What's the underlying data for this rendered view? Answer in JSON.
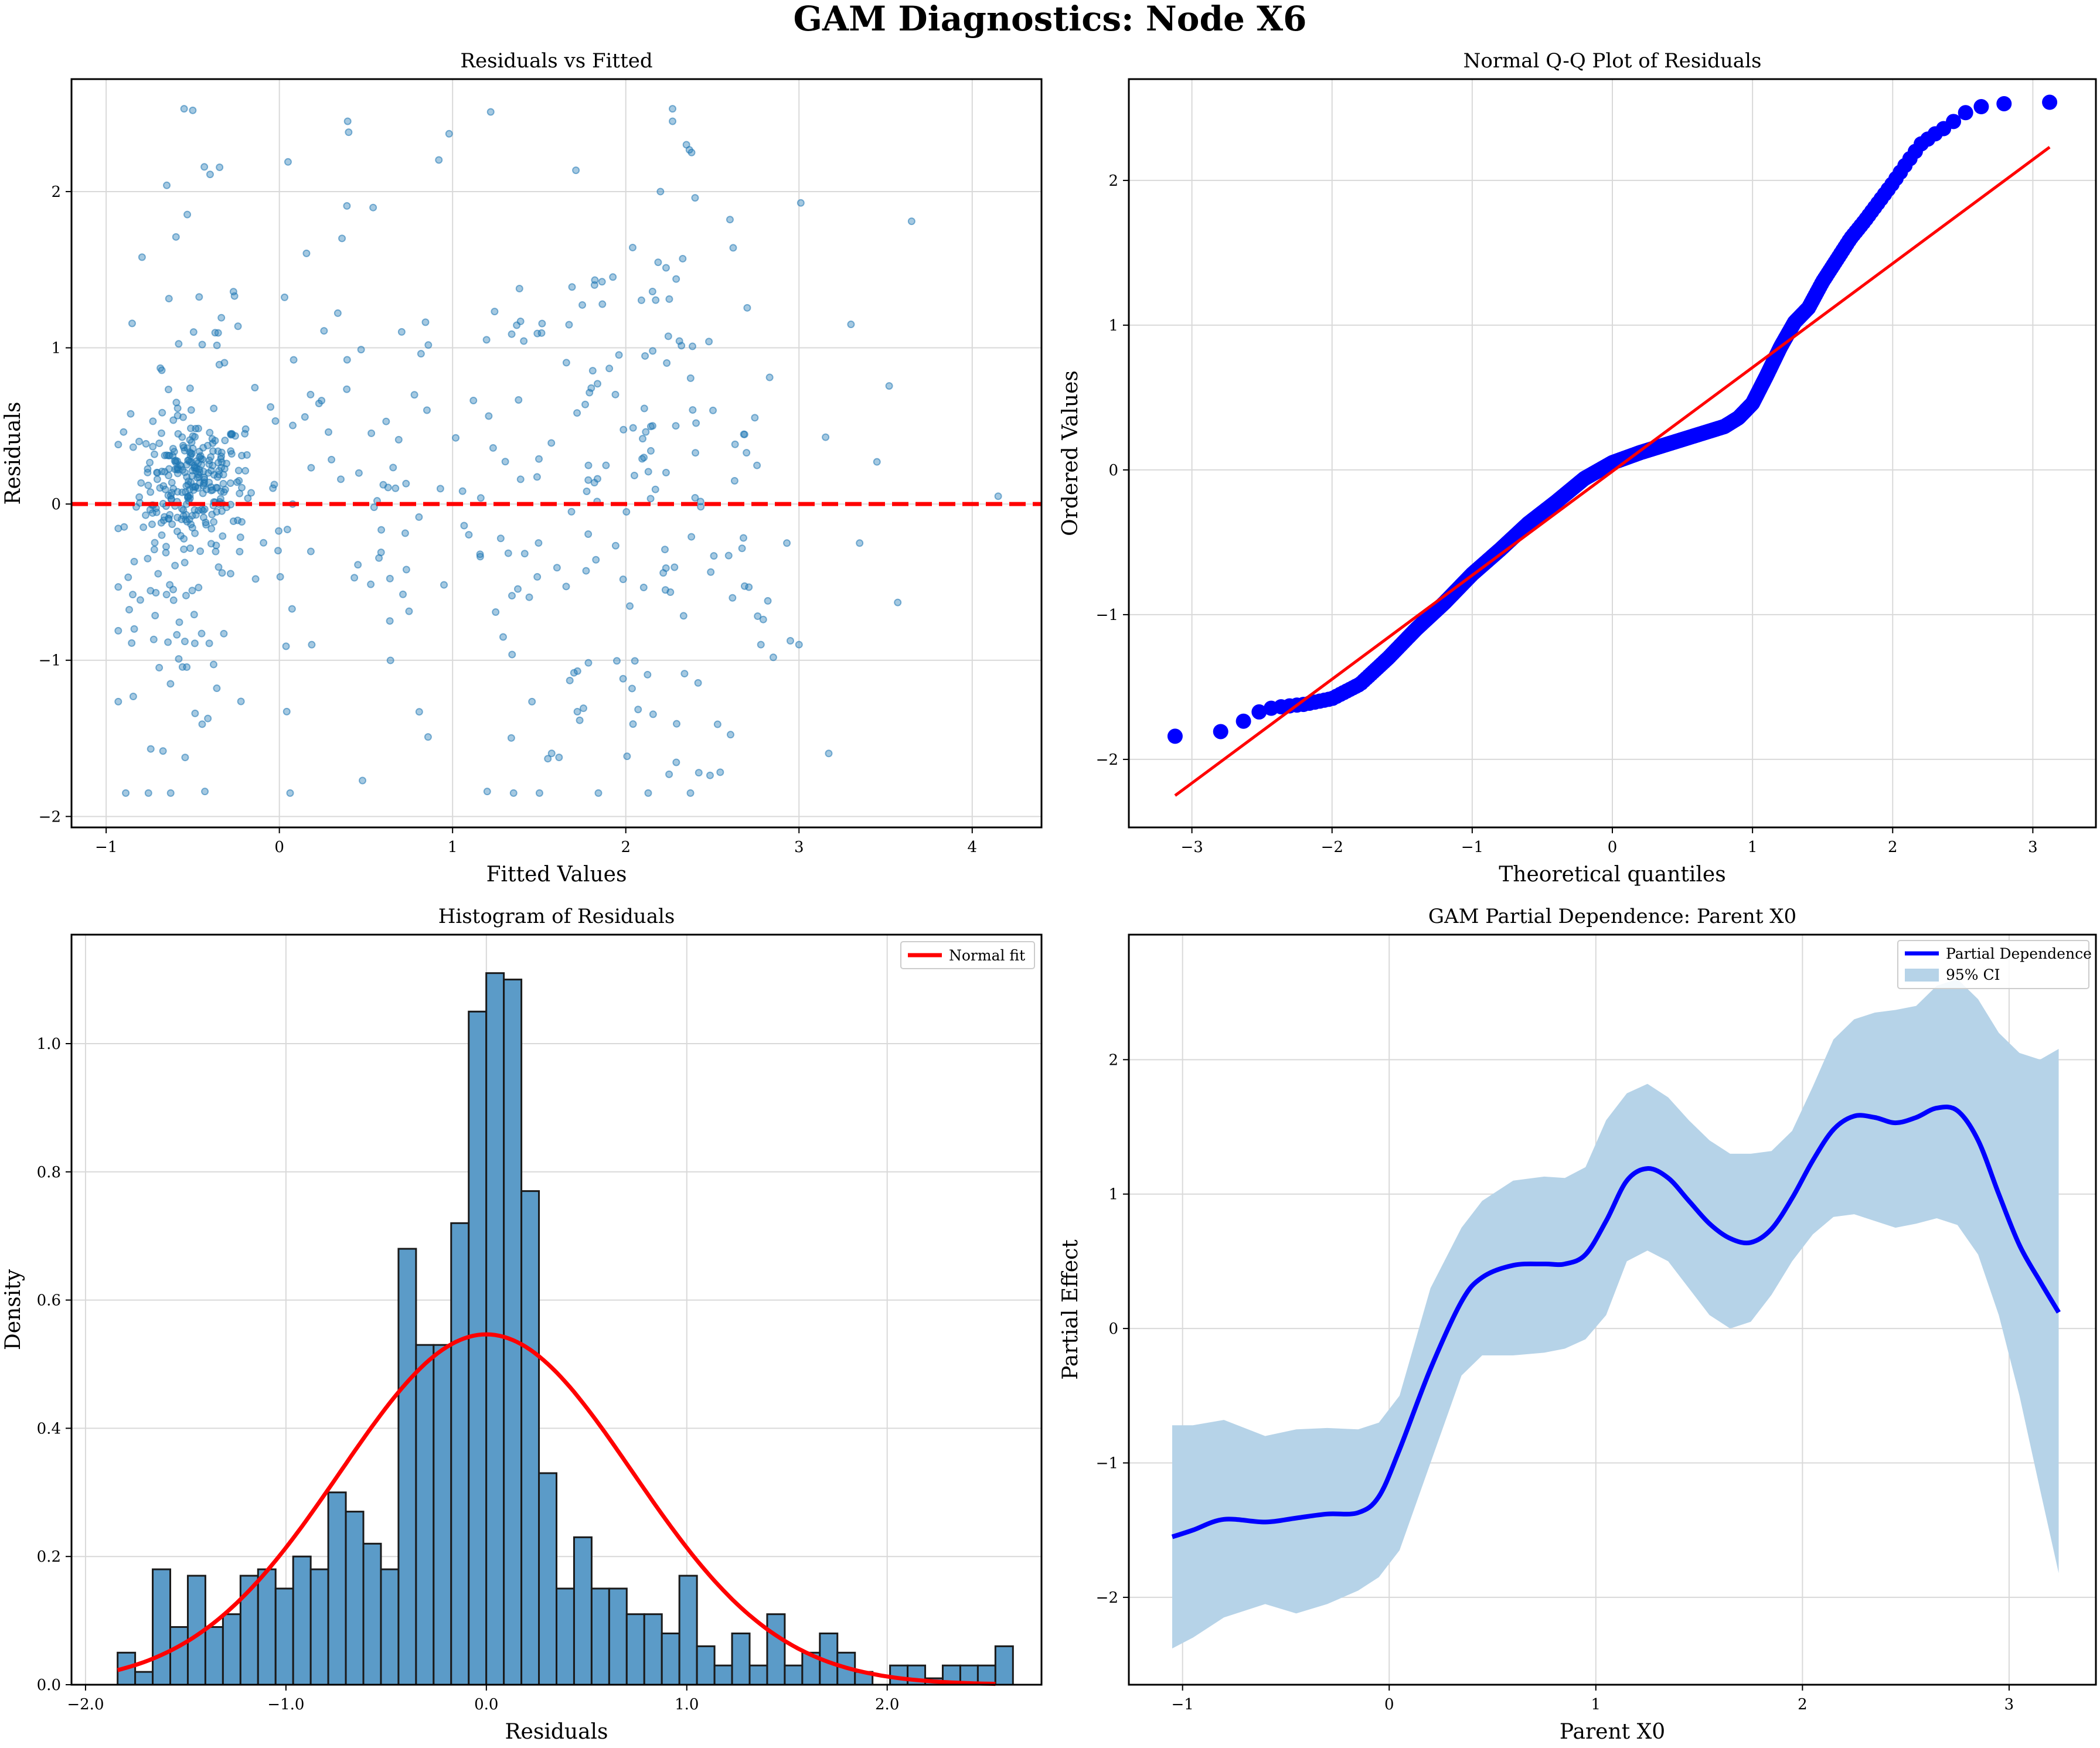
{
  "suptitle": "GAM Diagnostics: Node X6",
  "colors": {
    "scatter": "#1f77b4",
    "qq_points": "#0000ff",
    "red": "#ff0000",
    "hist_bar": "#5b9bc8",
    "pd_line": "#0000ff",
    "ci_fill": "#b6d3e8",
    "grid": "#d9d9d9"
  },
  "chart_data": [
    {
      "type": "scatter",
      "title": "Residuals vs Fitted",
      "xlabel": "Fitted Values",
      "ylabel": "Residuals",
      "xlim": [
        -1.2,
        4.4
      ],
      "ylim": [
        -2.07,
        2.72
      ],
      "xticks": [
        -1,
        0,
        1,
        2,
        3,
        4
      ],
      "yticks": [
        -2,
        -1,
        0,
        1,
        2
      ],
      "grid": true,
      "reference_line": {
        "y": 0,
        "style": "dashed",
        "color": "#ff0000"
      },
      "clusters": [
        {
          "x_center": -0.5,
          "x_spread": 0.15,
          "y_center": 0.15,
          "y_spread": 0.2,
          "count": 220
        },
        {
          "x_center": -0.55,
          "x_spread": 0.2,
          "y_center": -0.3,
          "y_spread": 0.6,
          "count": 90
        },
        {
          "x_center": -0.5,
          "x_spread": 0.25,
          "y_center": 0.4,
          "y_spread": 0.9,
          "count": 40
        },
        {
          "x_center": 0.7,
          "x_spread": 0.7,
          "y_center": 0.0,
          "y_spread": 0.9,
          "count": 110
        },
        {
          "x_center": 2.1,
          "x_spread": 0.45,
          "y_center": 0.0,
          "y_spread": 0.95,
          "count": 150
        }
      ],
      "points": [
        {
          "x": -0.55,
          "y": 2.53
        },
        {
          "x": -0.5,
          "y": 2.52
        },
        {
          "x": 2.27,
          "y": 2.53
        },
        {
          "x": 2.27,
          "y": 2.45
        },
        {
          "x": 1.22,
          "y": 2.51
        },
        {
          "x": 0.4,
          "y": 2.38
        },
        {
          "x": 0.98,
          "y": 2.37
        },
        {
          "x": 2.35,
          "y": 2.3
        },
        {
          "x": 2.38,
          "y": 2.25
        },
        {
          "x": 0.05,
          "y": 2.19
        },
        {
          "x": -0.4,
          "y": 2.11
        },
        {
          "x": -0.65,
          "y": 2.04
        },
        {
          "x": 2.2,
          "y": 2.0
        },
        {
          "x": 2.4,
          "y": 1.96
        },
        {
          "x": 3.65,
          "y": 1.81
        },
        {
          "x": 2.62,
          "y": 1.64
        },
        {
          "x": 4.15,
          "y": 0.05
        },
        {
          "x": 3.3,
          "y": 1.15
        },
        {
          "x": 3.45,
          "y": 0.27
        },
        {
          "x": 3.57,
          "y": -0.63
        },
        {
          "x": 3.35,
          "y": -0.25
        },
        {
          "x": 3.0,
          "y": -0.9
        },
        {
          "x": 2.78,
          "y": -0.9
        },
        {
          "x": 2.53,
          "y": -1.41
        },
        {
          "x": 2.25,
          "y": -1.73
        },
        {
          "x": 1.2,
          "y": -1.84
        },
        {
          "x": -0.43,
          "y": -1.84
        },
        {
          "x": 0.48,
          "y": -1.77
        },
        {
          "x": 2.48,
          "y": 1.04
        },
        {
          "x": 2.93,
          "y": -0.25
        },
        {
          "x": 2.82,
          "y": -0.62
        },
        {
          "x": 1.55,
          "y": -1.63
        }
      ]
    },
    {
      "type": "scatter",
      "title": "Normal Q-Q Plot of Residuals",
      "xlabel": "Theoretical quantiles",
      "ylabel": "Ordered Values",
      "xlim": [
        -3.45,
        3.45
      ],
      "ylim": [
        -2.47,
        2.7
      ],
      "xticks": [
        -3,
        -2,
        -1,
        0,
        1,
        2,
        3
      ],
      "yticks": [
        -2,
        -1,
        0,
        1,
        2
      ],
      "grid": true,
      "n_points": 700,
      "fit_line": {
        "x": [
          -3.12,
          3.12
        ],
        "y": [
          -2.25,
          2.23
        ],
        "color": "#ff0000"
      },
      "quantile_curve": {
        "theoretical": [
          -3.12,
          -2.85,
          -2.7,
          -2.6,
          -2.5,
          -2.4,
          -2.2,
          -2.0,
          -1.8,
          -1.6,
          -1.4,
          -1.2,
          -1.0,
          -0.8,
          -0.6,
          -0.4,
          -0.2,
          0.0,
          0.2,
          0.4,
          0.6,
          0.8,
          0.9,
          1.0,
          1.1,
          1.2,
          1.3,
          1.4,
          1.5,
          1.6,
          1.7,
          1.8,
          1.9,
          2.0,
          2.1,
          2.2,
          2.3,
          2.4,
          2.5,
          2.6,
          2.7,
          2.85,
          3.12
        ],
        "sample": [
          -1.84,
          -1.83,
          -1.77,
          -1.72,
          -1.66,
          -1.64,
          -1.62,
          -1.58,
          -1.48,
          -1.3,
          -1.1,
          -0.92,
          -0.72,
          -0.55,
          -0.37,
          -0.22,
          -0.06,
          0.05,
          0.12,
          0.18,
          0.24,
          0.3,
          0.36,
          0.46,
          0.65,
          0.85,
          1.02,
          1.12,
          1.3,
          1.45,
          1.6,
          1.72,
          1.85,
          1.98,
          2.12,
          2.25,
          2.32,
          2.38,
          2.46,
          2.5,
          2.53,
          2.53,
          2.54
        ]
      }
    },
    {
      "type": "bar",
      "title": "Histogram of Residuals",
      "xlabel": "Residuals",
      "ylabel": "Density",
      "xlim": [
        -2.07,
        2.77
      ],
      "ylim": [
        0,
        1.17
      ],
      "xticks": [
        -2,
        -1,
        0,
        1,
        2
      ],
      "yticks": [
        0.0,
        0.2,
        0.4,
        0.6,
        0.8,
        1.0
      ],
      "grid": true,
      "legend_position": "top-right",
      "bin_start": -1.84,
      "bin_width": 0.0876,
      "values": [
        0.05,
        0.02,
        0.18,
        0.09,
        0.17,
        0.09,
        0.11,
        0.17,
        0.18,
        0.15,
        0.2,
        0.18,
        0.3,
        0.27,
        0.22,
        0.18,
        0.68,
        0.53,
        0.53,
        0.72,
        1.05,
        1.11,
        1.1,
        0.77,
        0.33,
        0.15,
        0.23,
        0.15,
        0.15,
        0.11,
        0.11,
        0.08,
        0.17,
        0.06,
        0.03,
        0.08,
        0.03,
        0.11,
        0.03,
        0.05,
        0.08,
        0.05,
        0.02,
        0.0,
        0.03,
        0.03,
        0.01,
        0.03,
        0.03,
        0.03,
        0.06
      ],
      "normal_fit": {
        "label": "Normal fit",
        "mean": 0.0,
        "std": 0.73
      }
    },
    {
      "type": "line",
      "title": "GAM Partial Dependence: Parent X0",
      "xlabel": "Parent X0",
      "ylabel": "Partial Effect",
      "xlim": [
        -1.26,
        3.42
      ],
      "ylim": [
        -2.65,
        2.93
      ],
      "xticks": [
        -1,
        0,
        1,
        2,
        3
      ],
      "yticks": [
        -2,
        -1,
        0,
        1,
        2
      ],
      "grid": true,
      "legend_position": "top-right",
      "series": [
        {
          "name": "Partial Dependence",
          "x": [
            -1.05,
            -0.95,
            -0.8,
            -0.6,
            -0.45,
            -0.3,
            -0.15,
            -0.05,
            0.05,
            0.2,
            0.35,
            0.45,
            0.6,
            0.75,
            0.85,
            0.95,
            1.05,
            1.15,
            1.25,
            1.35,
            1.45,
            1.55,
            1.65,
            1.75,
            1.85,
            1.95,
            2.05,
            2.15,
            2.25,
            2.35,
            2.45,
            2.55,
            2.65,
            2.75,
            2.85,
            2.95,
            3.05,
            3.15,
            3.24
          ],
          "y": [
            -1.55,
            -1.5,
            -1.42,
            -1.44,
            -1.41,
            -1.38,
            -1.37,
            -1.25,
            -0.9,
            -0.3,
            0.2,
            0.38,
            0.47,
            0.48,
            0.48,
            0.55,
            0.8,
            1.1,
            1.19,
            1.12,
            0.95,
            0.78,
            0.67,
            0.64,
            0.74,
            0.97,
            1.25,
            1.48,
            1.58,
            1.57,
            1.53,
            1.57,
            1.64,
            1.62,
            1.4,
            1.0,
            0.62,
            0.35,
            0.12
          ]
        }
      ],
      "ci": {
        "name": "95% CI",
        "x": [
          -1.05,
          -0.95,
          -0.8,
          -0.6,
          -0.45,
          -0.3,
          -0.15,
          -0.05,
          0.05,
          0.2,
          0.35,
          0.45,
          0.6,
          0.75,
          0.85,
          0.95,
          1.05,
          1.15,
          1.25,
          1.35,
          1.45,
          1.55,
          1.65,
          1.75,
          1.85,
          1.95,
          2.05,
          2.15,
          2.25,
          2.35,
          2.45,
          2.55,
          2.65,
          2.75,
          2.85,
          2.95,
          3.05,
          3.15,
          3.24
        ],
        "lower": [
          -2.38,
          -2.3,
          -2.15,
          -2.05,
          -2.12,
          -2.05,
          -1.95,
          -1.85,
          -1.65,
          -1.0,
          -0.35,
          -0.2,
          -0.2,
          -0.18,
          -0.15,
          -0.08,
          0.1,
          0.5,
          0.58,
          0.5,
          0.3,
          0.1,
          0.0,
          0.05,
          0.25,
          0.5,
          0.7,
          0.83,
          0.85,
          0.8,
          0.75,
          0.78,
          0.82,
          0.77,
          0.55,
          0.1,
          -0.5,
          -1.2,
          -1.82
        ],
        "upper": [
          -0.72,
          -0.72,
          -0.68,
          -0.8,
          -0.75,
          -0.74,
          -0.75,
          -0.7,
          -0.5,
          0.3,
          0.75,
          0.95,
          1.1,
          1.13,
          1.12,
          1.2,
          1.55,
          1.75,
          1.82,
          1.72,
          1.55,
          1.4,
          1.3,
          1.3,
          1.32,
          1.47,
          1.8,
          2.15,
          2.3,
          2.35,
          2.37,
          2.4,
          2.55,
          2.6,
          2.45,
          2.2,
          2.05,
          2.0,
          2.08
        ]
      }
    }
  ]
}
